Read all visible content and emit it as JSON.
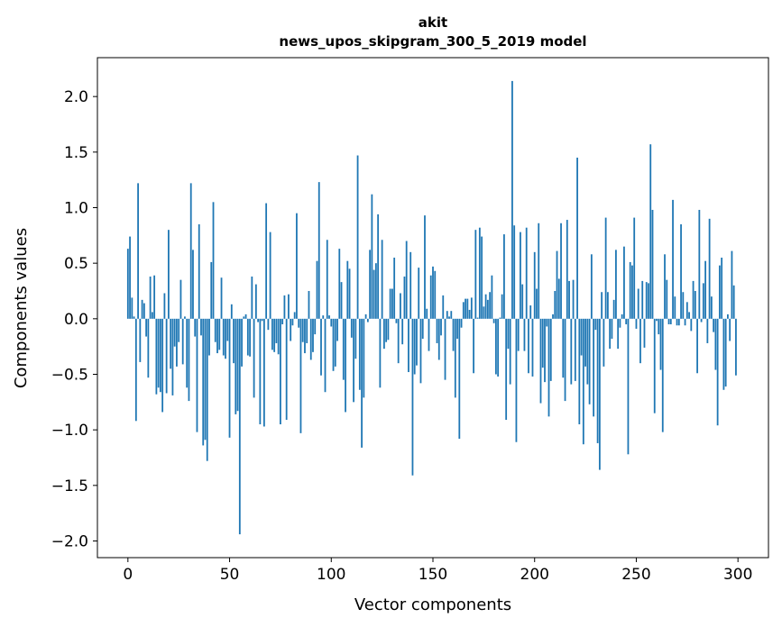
{
  "chart_data": {
    "type": "bar",
    "title_line1": "akit",
    "title_line2": "news_upos_skipgram_300_5_2019 model",
    "xlabel": "Vector components",
    "ylabel": "Components values",
    "xlim": [
      -15,
      315
    ],
    "ylim": [
      -2.15,
      2.35
    ],
    "xticks": [
      0,
      50,
      100,
      150,
      200,
      250,
      300
    ],
    "xtick_labels": [
      "0",
      "50",
      "100",
      "150",
      "200",
      "250",
      "300"
    ],
    "yticks": [
      -2.0,
      -1.5,
      -1.0,
      -0.5,
      0.0,
      0.5,
      1.0,
      1.5,
      2.0
    ],
    "ytick_labels": [
      "−2.0",
      "−1.5",
      "−1.0",
      "−0.5",
      "0.0",
      "0.5",
      "1.0",
      "1.5",
      "2.0"
    ],
    "bar_color": "#1f77b4",
    "values": [
      0.63,
      0.74,
      0.19,
      0.02,
      -0.92,
      1.22,
      -0.39,
      0.17,
      0.14,
      -0.16,
      -0.53,
      0.38,
      0.06,
      0.39,
      -0.68,
      -0.62,
      -0.66,
      -0.84,
      0.23,
      -0.67,
      0.8,
      -0.45,
      -0.69,
      -0.25,
      -0.43,
      -0.21,
      0.35,
      -0.41,
      0.02,
      -0.62,
      -0.74,
      1.22,
      0.62,
      -0.16,
      -1.02,
      0.85,
      -0.15,
      -1.14,
      -1.09,
      -1.28,
      -0.33,
      0.51,
      1.05,
      -0.21,
      -0.31,
      -0.28,
      0.37,
      -0.33,
      -0.36,
      -0.2,
      -1.07,
      0.13,
      -0.4,
      -0.86,
      -0.83,
      -1.94,
      -0.43,
      0.02,
      0.04,
      -0.33,
      -0.34,
      0.38,
      -0.71,
      0.31,
      -0.03,
      -0.95,
      -0.02,
      -0.97,
      1.04,
      -0.1,
      0.78,
      -0.28,
      -0.3,
      -0.22,
      -0.32,
      -0.95,
      -0.05,
      0.21,
      -0.91,
      0.22,
      -0.2,
      -0.06,
      0.06,
      0.95,
      -0.08,
      -1.03,
      -0.21,
      -0.31,
      -0.22,
      0.25,
      -0.37,
      -0.3,
      -0.14,
      0.52,
      1.23,
      -0.51,
      0.03,
      -0.66,
      0.71,
      0.03,
      -0.07,
      -0.47,
      -0.43,
      -0.2,
      0.63,
      0.33,
      -0.55,
      -0.84,
      0.52,
      0.45,
      -0.17,
      -0.75,
      -0.36,
      1.47,
      -0.64,
      -1.16,
      -0.71,
      0.04,
      -0.03,
      0.62,
      1.12,
      0.44,
      0.5,
      0.94,
      -0.62,
      0.71,
      -0.27,
      -0.21,
      -0.19,
      0.27,
      0.27,
      0.55,
      -0.04,
      -0.4,
      0.23,
      -0.23,
      0.38,
      0.7,
      -0.48,
      0.6,
      -1.41,
      -0.5,
      -0.42,
      0.46,
      -0.58,
      -0.18,
      0.93,
      0.09,
      -0.29,
      0.39,
      0.47,
      0.43,
      -0.22,
      -0.37,
      -0.15,
      0.21,
      -0.55,
      0.07,
      0.02,
      0.07,
      -0.29,
      -0.71,
      -0.18,
      -1.08,
      -0.08,
      0.15,
      0.18,
      0.18,
      0.08,
      0.19,
      -0.49,
      0.8,
      0.01,
      0.82,
      0.74,
      0.11,
      0.22,
      0.17,
      0.24,
      0.39,
      -0.04,
      -0.5,
      -0.52,
      0.01,
      0.22,
      0.76,
      -0.91,
      -0.27,
      -0.59,
      2.14,
      0.84,
      -1.11,
      -0.29,
      0.78,
      0.31,
      -0.29,
      0.82,
      -0.49,
      0.12,
      -0.52,
      0.6,
      0.27,
      0.86,
      -0.76,
      -0.44,
      -0.57,
      -0.07,
      -0.88,
      -0.56,
      0.04,
      0.25,
      0.61,
      0.36,
      0.86,
      -0.53,
      -0.74,
      0.89,
      0.34,
      -0.59,
      0.35,
      -0.56,
      1.45,
      -0.95,
      -0.33,
      -1.13,
      -0.43,
      -0.59,
      -0.77,
      0.58,
      -0.88,
      -0.1,
      -1.12,
      -1.36,
      0.24,
      -0.43,
      0.91,
      0.24,
      -0.27,
      -0.18,
      0.17,
      0.62,
      -0.27,
      -0.08,
      0.04,
      0.65,
      -0.05,
      -1.22,
      0.51,
      0.48,
      0.91,
      -0.09,
      0.27,
      -0.4,
      0.34,
      -0.26,
      0.33,
      0.32,
      1.57,
      0.98,
      -0.85,
      -0.02,
      -0.14,
      -0.46,
      -1.02,
      0.58,
      0.35,
      -0.05,
      -0.05,
      1.07,
      0.2,
      -0.06,
      -0.06,
      0.85,
      0.24,
      -0.06,
      0.15,
      0.06,
      -0.11,
      0.34,
      0.25,
      -0.49,
      0.98,
      -0.03,
      0.32,
      0.52,
      -0.22,
      0.9,
      0.2,
      -0.12,
      -0.46,
      -0.96,
      0.48,
      0.55,
      -0.64,
      -0.61,
      0.04,
      -0.2,
      0.61,
      0.3,
      -0.51
    ]
  }
}
